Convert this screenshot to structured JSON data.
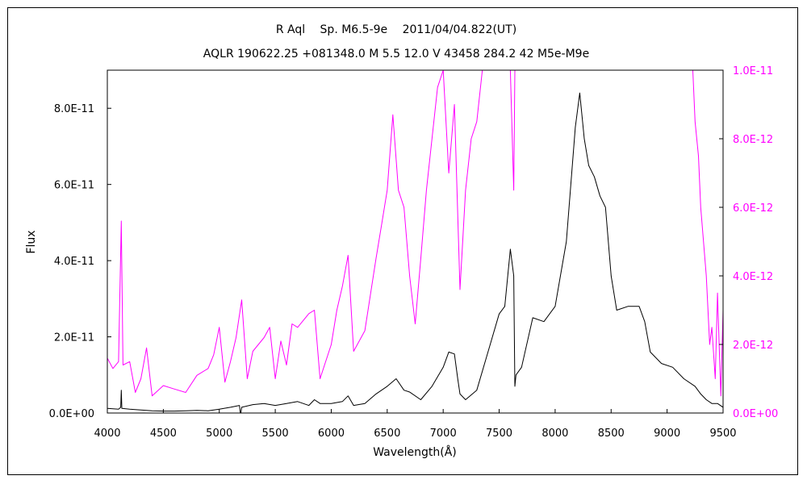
{
  "chart_data": {
    "type": "line",
    "title": "R Aql　 Sp. M6.5-9e　 2011/04/04.822(UT)",
    "subtitle": "AQLR 190622.25 +081348.0 M 5.5 12.0 V 43458 284.2 42 M5e-M9e",
    "xlabel": "Wavelength(Å)",
    "ylabel": "Flux",
    "x_ticks": [
      "4000",
      "4500",
      "5000",
      "5500",
      "6000",
      "6500",
      "7000",
      "7500",
      "8000",
      "8500",
      "9000",
      "9500"
    ],
    "y_ticks_left": [
      "0.0E+00",
      "2.0E-11",
      "4.0E-11",
      "6.0E-11",
      "8.0E-11"
    ],
    "y_ticks_right": [
      "0.0E+00",
      "2.0E-12",
      "4.0E-12",
      "6.0E-12",
      "8.0E-12",
      "1.0E-11"
    ],
    "xlim": [
      4000,
      9500
    ],
    "ylim_left": [
      0,
      9e-11
    ],
    "ylim_right": [
      0,
      1e-11
    ],
    "grid": false,
    "series": [
      {
        "axis": "left",
        "color": "#000000",
        "points": [
          [
            4000,
            1.2e-12
          ],
          [
            4100,
            1e-12
          ],
          [
            4120,
            1.5e-12
          ],
          [
            4125,
            6e-12
          ],
          [
            4130,
            1.2e-12
          ],
          [
            4200,
            1e-12
          ],
          [
            4300,
            8e-13
          ],
          [
            4400,
            6e-13
          ],
          [
            4500,
            5e-13
          ],
          [
            4600,
            5e-13
          ],
          [
            4700,
            6e-13
          ],
          [
            4800,
            7e-13
          ],
          [
            4900,
            6e-13
          ],
          [
            5000,
            1e-12
          ],
          [
            5100,
            1.5e-12
          ],
          [
            5180,
            2e-12
          ],
          [
            5190,
            -5e-13
          ],
          [
            5200,
            1.5e-12
          ],
          [
            5300,
            2.2e-12
          ],
          [
            5400,
            2.5e-12
          ],
          [
            5500,
            2e-12
          ],
          [
            5600,
            2.5e-12
          ],
          [
            5700,
            3e-12
          ],
          [
            5800,
            2e-12
          ],
          [
            5850,
            3.5e-12
          ],
          [
            5900,
            2.5e-12
          ],
          [
            6000,
            2.5e-12
          ],
          [
            6100,
            3e-12
          ],
          [
            6150,
            4.5e-12
          ],
          [
            6200,
            2e-12
          ],
          [
            6300,
            2.5e-12
          ],
          [
            6400,
            5e-12
          ],
          [
            6500,
            7e-12
          ],
          [
            6580,
            9e-12
          ],
          [
            6650,
            6e-12
          ],
          [
            6700,
            5.5e-12
          ],
          [
            6800,
            3.5e-12
          ],
          [
            6900,
            7e-12
          ],
          [
            7000,
            1.2e-11
          ],
          [
            7050,
            1.6e-11
          ],
          [
            7100,
            1.55e-11
          ],
          [
            7130,
            9e-12
          ],
          [
            7150,
            5e-12
          ],
          [
            7200,
            3.5e-12
          ],
          [
            7300,
            6e-12
          ],
          [
            7400,
            1.6e-11
          ],
          [
            7500,
            2.6e-11
          ],
          [
            7550,
            2.8e-11
          ],
          [
            7600,
            4.3e-11
          ],
          [
            7630,
            3.6e-11
          ],
          [
            7640,
            7e-12
          ],
          [
            7650,
            1e-11
          ],
          [
            7700,
            1.2e-11
          ],
          [
            7800,
            2.5e-11
          ],
          [
            7900,
            2.4e-11
          ],
          [
            8000,
            2.8e-11
          ],
          [
            8100,
            4.5e-11
          ],
          [
            8180,
            7.5e-11
          ],
          [
            8220,
            8.4e-11
          ],
          [
            8260,
            7.2e-11
          ],
          [
            8300,
            6.5e-11
          ],
          [
            8350,
            6.2e-11
          ],
          [
            8400,
            5.7e-11
          ],
          [
            8450,
            5.4e-11
          ],
          [
            8500,
            3.6e-11
          ],
          [
            8550,
            2.7e-11
          ],
          [
            8650,
            2.8e-11
          ],
          [
            8750,
            2.8e-11
          ],
          [
            8800,
            2.4e-11
          ],
          [
            8850,
            1.6e-11
          ],
          [
            8950,
            1.3e-11
          ],
          [
            9050,
            1.2e-11
          ],
          [
            9150,
            9e-12
          ],
          [
            9250,
            7e-12
          ],
          [
            9300,
            5e-12
          ],
          [
            9350,
            3.5e-12
          ],
          [
            9400,
            2.5e-12
          ],
          [
            9450,
            2.5e-12
          ],
          [
            9500,
            1.5e-12
          ]
        ]
      },
      {
        "axis": "right",
        "color": "#ff00ff",
        "points": [
          [
            4000,
            1.6e-12
          ],
          [
            4050,
            1.3e-12
          ],
          [
            4100,
            1.5e-12
          ],
          [
            4125,
            5.6e-12
          ],
          [
            4140,
            1.4e-12
          ],
          [
            4200,
            1.5e-12
          ],
          [
            4250,
            6e-13
          ],
          [
            4300,
            1e-12
          ],
          [
            4350,
            1.9e-12
          ],
          [
            4400,
            5e-13
          ],
          [
            4500,
            8e-13
          ],
          [
            4600,
            7e-13
          ],
          [
            4700,
            6e-13
          ],
          [
            4800,
            1.1e-12
          ],
          [
            4900,
            1.3e-12
          ],
          [
            4950,
            1.7e-12
          ],
          [
            5000,
            2.5e-12
          ],
          [
            5050,
            9e-13
          ],
          [
            5100,
            1.5e-12
          ],
          [
            5150,
            2.2e-12
          ],
          [
            5200,
            3.3e-12
          ],
          [
            5250,
            1e-12
          ],
          [
            5300,
            1.8e-12
          ],
          [
            5400,
            2.2e-12
          ],
          [
            5450,
            2.5e-12
          ],
          [
            5500,
            1e-12
          ],
          [
            5550,
            2.1e-12
          ],
          [
            5600,
            1.4e-12
          ],
          [
            5650,
            2.6e-12
          ],
          [
            5700,
            2.5e-12
          ],
          [
            5800,
            2.9e-12
          ],
          [
            5850,
            3e-12
          ],
          [
            5900,
            1e-12
          ],
          [
            6000,
            2e-12
          ],
          [
            6050,
            3e-12
          ],
          [
            6100,
            3.7e-12
          ],
          [
            6150,
            4.6e-12
          ],
          [
            6200,
            1.8e-12
          ],
          [
            6300,
            2.4e-12
          ],
          [
            6400,
            4.5e-12
          ],
          [
            6450,
            5.5e-12
          ],
          [
            6500,
            6.5e-12
          ],
          [
            6550,
            8.7e-12
          ],
          [
            6600,
            6.5e-12
          ],
          [
            6650,
            6e-12
          ],
          [
            6700,
            4e-12
          ],
          [
            6750,
            2.6e-12
          ],
          [
            6800,
            4.5e-12
          ],
          [
            6850,
            6.5e-12
          ],
          [
            6900,
            8e-12
          ],
          [
            6950,
            9.5e-12
          ],
          [
            7000,
            1e-11
          ],
          [
            7050,
            7e-12
          ],
          [
            7100,
            9e-12
          ],
          [
            7150,
            3.6e-12
          ],
          [
            7200,
            6.5e-12
          ],
          [
            7250,
            8e-12
          ],
          [
            7300,
            8.5e-12
          ],
          [
            7350,
            1e-11
          ],
          [
            7400,
            1e-11
          ],
          [
            7500,
            1e-11
          ],
          [
            7600,
            1e-11
          ],
          [
            7630,
            6.5e-12
          ],
          [
            7640,
            1e-11
          ],
          [
            7660,
            1e-11
          ],
          [
            9230,
            1e-11
          ],
          [
            9250,
            8.5e-12
          ],
          [
            9280,
            7.5e-12
          ],
          [
            9300,
            6e-12
          ],
          [
            9350,
            4e-12
          ],
          [
            9380,
            2e-12
          ],
          [
            9400,
            2.5e-12
          ],
          [
            9430,
            1e-12
          ],
          [
            9450,
            3.5e-12
          ],
          [
            9480,
            5e-13
          ],
          [
            9500,
            3e-12
          ]
        ]
      }
    ]
  }
}
